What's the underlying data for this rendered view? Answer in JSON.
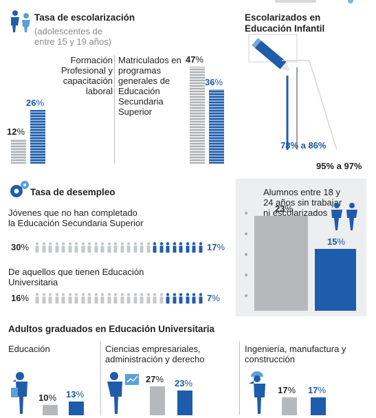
{
  "colors": {
    "blue": "#1f5cab",
    "grey": "#b5b9bc",
    "accent_light": "#5aa0d8",
    "text": "#222222"
  },
  "icons": {
    "students": "students-icon",
    "gears": "gears-icon",
    "pencil": "pencil-icon",
    "people": "people-icon",
    "teacher": "teacher-icon",
    "businessman": "businessman-icon",
    "engineer": "engineer-icon",
    "chart_board": "chart-board-icon",
    "legend": "legend-icon"
  },
  "enrollment": {
    "title": "Tasa de escolarización",
    "subtitle": "(adolescentes de entre 15 y 19 años)",
    "vocational_label": "Formación Profesional y capacitación laboral",
    "general_label": "Matriculados en programas generales de Educación Secundaria Superior"
  },
  "preschool": {
    "title": "Escolarizados en Educación Infantil",
    "range1": "78% a 86%",
    "range2": "95% a 97%"
  },
  "unemployment": {
    "title": "Tasa de desempleo",
    "row1_label": "Jóvenes que no han completado la Educación Secundaria Superior",
    "row2_label": "De aquellos que tienen Educación Universitaria"
  },
  "neet": {
    "label": "Alumnos entre 18 y 24 años sin trabajar ni escolarizados"
  },
  "graduates": {
    "title": "Adultos graduados en Educación Universitaria",
    "cat1": "Educación",
    "cat2": "Ciencias empresariales, administración y derecho",
    "cat3": "Ingeniería, manufactura y construcción"
  },
  "chart_data": [
    {
      "type": "bar",
      "title": "Tasa de escolarización",
      "categories": [
        "Formación Profesional y capacitación laboral",
        "Matriculados en programas generales de Educación Secundaria Superior"
      ],
      "series": [
        {
          "values": [
            12,
            47
          ]
        },
        {
          "values": [
            26,
            36
          ]
        }
      ],
      "value_labels": [
        [
          "12%",
          "47%"
        ],
        [
          "26%",
          "36%"
        ]
      ]
    },
    {
      "type": "bar",
      "title": "Escolarizados en Educación Infantil",
      "categories": [
        "78% a 86%",
        "95% a 97%"
      ],
      "series": [
        {
          "values": [
            [
              78,
              86
            ],
            [
              95,
              97
            ]
          ]
        }
      ]
    },
    {
      "type": "bar",
      "title": "Tasa de desempleo",
      "categories": [
        "Jóvenes que no han completado la Educación Secundaria Superior",
        "De aquellos que tienen Educación Universitaria"
      ],
      "series": [
        {
          "values": [
            30,
            16
          ]
        },
        {
          "values": [
            17,
            7
          ]
        }
      ],
      "value_labels": [
        [
          "30%",
          "16%"
        ],
        [
          "17%",
          "7%"
        ]
      ]
    },
    {
      "type": "bar",
      "title": "Alumnos entre 18 y 24 años sin trabajar ni escolarizados",
      "categories": [
        ""
      ],
      "series": [
        {
          "values": [
            23
          ]
        },
        {
          "values": [
            15
          ]
        }
      ],
      "value_labels": [
        [
          "23%"
        ],
        [
          "15%"
        ]
      ]
    },
    {
      "type": "bar",
      "title": "Adultos graduados en Educación Universitaria",
      "categories": [
        "Educación",
        "Ciencias empresariales, administración y derecho",
        "Ingeniería, manufactura y construcción"
      ],
      "series": [
        {
          "values": [
            10,
            27,
            17
          ]
        },
        {
          "values": [
            13,
            23,
            17
          ]
        }
      ],
      "value_labels": [
        [
          "10%",
          "27%",
          "17%"
        ],
        [
          "13%",
          "23%",
          "17%"
        ]
      ]
    }
  ]
}
